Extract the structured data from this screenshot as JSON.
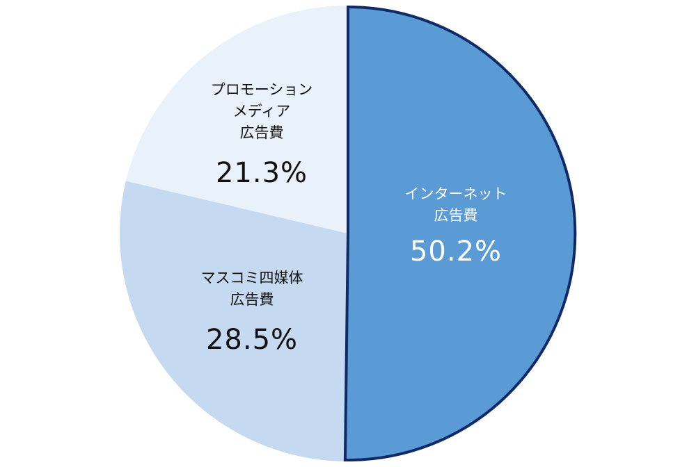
{
  "chart_data": {
    "type": "pie",
    "start": "top",
    "direction": "clockwise",
    "slices": [
      {
        "label_lines": [
          "インターネット",
          "広告費"
        ],
        "value": 50.2,
        "value_label": "50.2%",
        "color": "#5b9bd5",
        "stroke": "#0f2a66",
        "text_color": "#ffffff"
      },
      {
        "label_lines": [
          "マスコミ四媒体",
          "広告費"
        ],
        "value": 28.5,
        "value_label": "28.5%",
        "color": "#c5daf0",
        "stroke": "none",
        "text_color": "#111111"
      },
      {
        "label_lines": [
          "プロモーション",
          "メディア",
          "広告費"
        ],
        "value": 21.3,
        "value_label": "21.3%",
        "color": "#e9f1fa",
        "stroke": "none",
        "text_color": "#111111"
      }
    ]
  }
}
